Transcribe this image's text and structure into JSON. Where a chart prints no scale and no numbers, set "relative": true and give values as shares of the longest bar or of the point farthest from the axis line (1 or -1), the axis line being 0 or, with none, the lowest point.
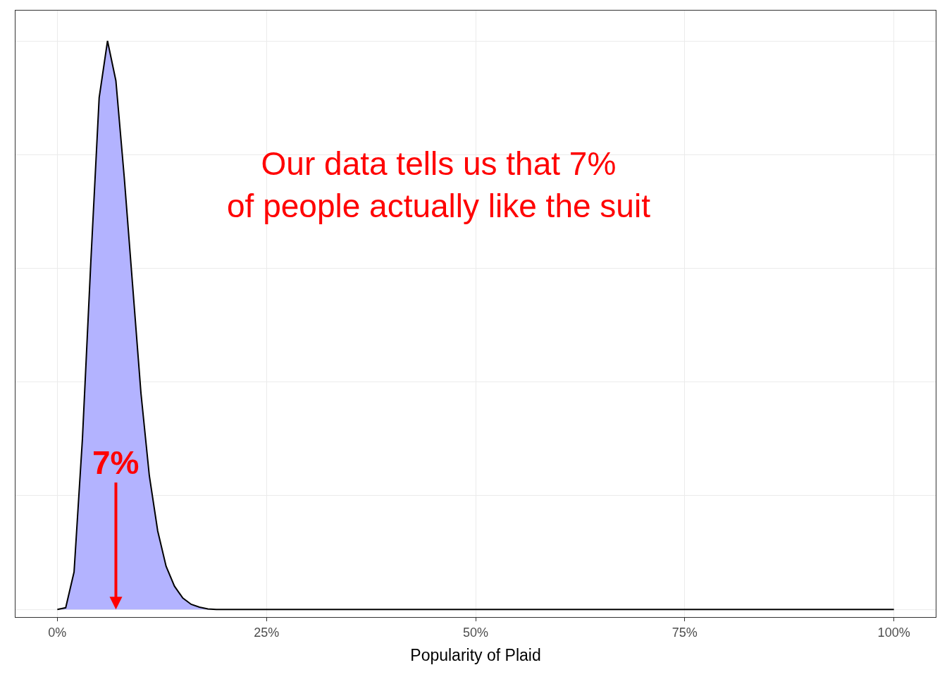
{
  "chart_data": {
    "type": "area",
    "relative": true,
    "xlabel": "Popularity of Plaid",
    "x": [
      0,
      1,
      2,
      3,
      4,
      5,
      6,
      7,
      8,
      9,
      10,
      11,
      12,
      13,
      14,
      15,
      16,
      17,
      18,
      19,
      20,
      100
    ],
    "series": [
      {
        "color": "#b3b3ff",
        "values": [
          0,
          0.003,
          0.066,
          0.3,
          0.61,
          0.9,
          1.0,
          0.93,
          0.76,
          0.57,
          0.38,
          0.235,
          0.138,
          0.076,
          0.041,
          0.02,
          0.009,
          0.004,
          0.001,
          0,
          0,
          0
        ]
      }
    ],
    "xlim": [
      -5,
      105
    ],
    "xticks": [
      {
        "value": 0,
        "label": "0%"
      },
      {
        "value": 25,
        "label": "25%"
      },
      {
        "value": 50,
        "label": "50%"
      },
      {
        "value": 75,
        "label": "75%"
      },
      {
        "value": 100,
        "label": "100%"
      }
    ],
    "annotations": [
      "Our data tells us that 7%\nof people actually like the suit",
      {
        "text": "7%",
        "x": 7,
        "y": 0
      }
    ],
    "grid": true,
    "tick_labels": "x"
  }
}
